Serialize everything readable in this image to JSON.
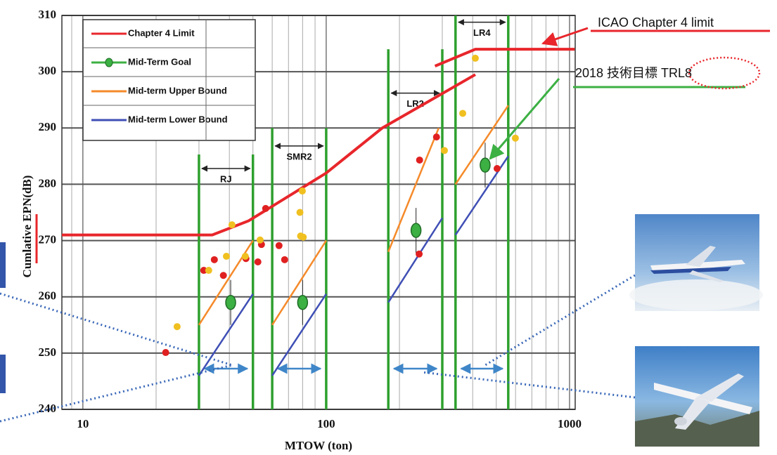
{
  "chart_data": {
    "type": "line",
    "x_label": "MTOW (ton)",
    "y_label": "Cumlative EPN(dB)",
    "xlim": [
      8.2,
      1055
    ],
    "xticks": [
      10,
      100,
      1000
    ],
    "log_x": true,
    "ylim": [
      240,
      310
    ],
    "yticks": [
      240,
      250,
      260,
      270,
      280,
      290,
      300,
      310
    ],
    "grid": true,
    "series": [
      {
        "name": "Chapter 4 Limit",
        "color": "#e8262b",
        "x": [
          8.2,
          34,
          48,
          100,
          170,
          410,
          null,
          280,
          410,
          1050
        ],
        "values": [
          271,
          271,
          273.5,
          282,
          290,
          299.5,
          null,
          301,
          304,
          304
        ]
      },
      {
        "name": "Mid-Term Goal",
        "color": "#3cb043",
        "marker": true,
        "x": [
          40.5,
          80,
          234,
          450
        ],
        "values": [
          259,
          259,
          271.8,
          283.4
        ]
      },
      {
        "name": "Mid-term Upper Bound",
        "color": "#f58a2a",
        "x": [
          30,
          50,
          null,
          60,
          100,
          null,
          180,
          290,
          null,
          340,
          560
        ],
        "values": [
          255,
          270,
          null,
          255,
          270,
          null,
          268,
          290,
          null,
          280,
          294
        ]
      },
      {
        "name": "Mid-term Lower Bound",
        "color": "#3f4fb5",
        "x": [
          30,
          50,
          null,
          60,
          100,
          null,
          180,
          300,
          null,
          340,
          560
        ],
        "values": [
          246,
          260.5,
          null,
          246,
          260.5,
          null,
          259,
          274,
          null,
          271,
          285
        ]
      }
    ],
    "points": [
      {
        "color": "#e02020",
        "x": [
          21.9,
          34.7,
          31.4,
          37.8,
          46.8,
          56.4,
          54.2,
          64,
          67.5,
          52.4,
          242,
          284,
          241,
          504
        ],
        "values": [
          250.1,
          266.6,
          264.7,
          263.8,
          266.8,
          275.7,
          269.3,
          269.1,
          266.6,
          266.2,
          284.3,
          288.4,
          267.6,
          282.8
        ]
      },
      {
        "color": "#f0c020",
        "x": [
          24.4,
          41,
          46.5,
          32.9,
          38.9,
          79.8,
          78,
          78.5,
          80.5,
          53.5,
          306,
          364,
          410,
          599
        ],
        "values": [
          254.7,
          272.8,
          267.2,
          264.7,
          267.2,
          278.8,
          275,
          270.8,
          270.6,
          270.1,
          286,
          292.6,
          302.4,
          288.2
        ]
      }
    ],
    "bands": [
      {
        "label": "RJ",
        "range": [
          30,
          50
        ],
        "top": 285.3,
        "label_y": 282.8
      },
      {
        "label": "SMR2",
        "range": [
          60,
          100
        ],
        "top": 290,
        "label_y": 286.8
      },
      {
        "label": "LR2",
        "range": [
          180,
          300
        ],
        "top": 304,
        "label_y": 296.2
      },
      {
        "label": "LR4",
        "range": [
          340,
          560
        ],
        "top": 310,
        "label_y": 308.8
      }
    ]
  },
  "annotations": {
    "icao": "ICAO Chapter 4 limit",
    "target": "2018 技術目標 TRL8"
  }
}
